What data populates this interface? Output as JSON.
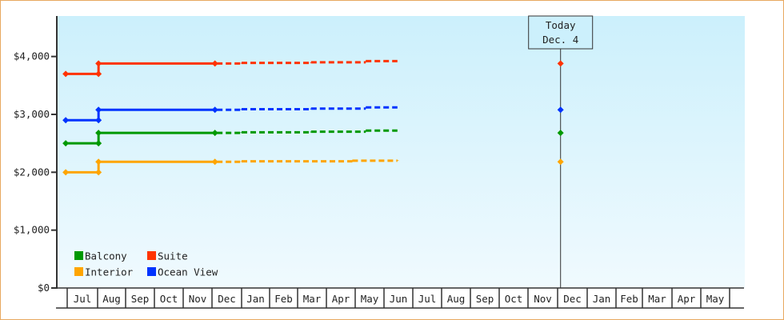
{
  "chart_data": {
    "type": "line",
    "title": "",
    "xlabel": "",
    "ylabel": "",
    "ylim": [
      0,
      4700
    ],
    "y_ticks": [
      "$0",
      "$1,000",
      "$2,000",
      "$3,000",
      "$4,000"
    ],
    "y_tick_values": [
      0,
      1000,
      2000,
      3000,
      4000
    ],
    "categories": [
      "",
      "Jul",
      "Aug",
      "Sep",
      "Oct",
      "Nov",
      "Dec",
      "Jan",
      "Feb",
      "Mar",
      "Apr",
      "May",
      "Jun",
      "Jul",
      "Aug",
      "Sep",
      "Oct",
      "Nov",
      "Dec",
      "Jan",
      "Feb",
      "Mar",
      "Apr",
      "May",
      ""
    ],
    "grid": false,
    "background": "light-blue gradient",
    "legend_position": "bottom-left",
    "today_marker": {
      "line1": "Today",
      "line2": "Dec. 4",
      "month": "Dec",
      "day": 4
    },
    "series": [
      {
        "name": "Suite",
        "color": "#ff3300",
        "points": [
          [
            "Jun",
            27,
            3700
          ],
          [
            "Aug",
            2,
            3700
          ],
          [
            "Aug",
            2,
            3880
          ],
          [
            "Dec",
            4,
            3880
          ]
        ],
        "forecast": [
          [
            "Dec",
            6,
            3880
          ],
          [
            "Jan",
            1,
            3890
          ],
          [
            "Mar",
            15,
            3900
          ],
          [
            "May",
            12,
            3920
          ],
          [
            "Jun",
            15,
            3920
          ]
        ]
      },
      {
        "name": "Ocean View",
        "color": "#0033ff",
        "points": [
          [
            "Jun",
            27,
            2900
          ],
          [
            "Aug",
            2,
            2900
          ],
          [
            "Aug",
            2,
            3080
          ],
          [
            "Dec",
            4,
            3080
          ]
        ],
        "forecast": [
          [
            "Dec",
            6,
            3080
          ],
          [
            "Jan",
            1,
            3090
          ],
          [
            "Mar",
            15,
            3100
          ],
          [
            "May",
            12,
            3120
          ],
          [
            "Jun",
            15,
            3120
          ]
        ]
      },
      {
        "name": "Balcony",
        "color": "#009900",
        "points": [
          [
            "Jun",
            27,
            2500
          ],
          [
            "Aug",
            2,
            2500
          ],
          [
            "Aug",
            2,
            2680
          ],
          [
            "Dec",
            4,
            2680
          ]
        ],
        "forecast": [
          [
            "Dec",
            6,
            2680
          ],
          [
            "Jan",
            1,
            2690
          ],
          [
            "Mar",
            15,
            2700
          ],
          [
            "May",
            12,
            2720
          ],
          [
            "Jun",
            15,
            2720
          ]
        ]
      },
      {
        "name": "Interior",
        "color": "#ffa500",
        "points": [
          [
            "Jun",
            27,
            2000
          ],
          [
            "Aug",
            2,
            2000
          ],
          [
            "Aug",
            2,
            2180
          ],
          [
            "Dec",
            4,
            2180
          ]
        ],
        "forecast": [
          [
            "Dec",
            6,
            2180
          ],
          [
            "Jan",
            1,
            2190
          ],
          [
            "Apr",
            28,
            2200
          ],
          [
            "Jun",
            15,
            2210
          ]
        ]
      }
    ],
    "legend": [
      {
        "name": "Balcony",
        "color": "#009900"
      },
      {
        "name": "Suite",
        "color": "#ff3300"
      },
      {
        "name": "Interior",
        "color": "#ffa500"
      },
      {
        "name": "Ocean View",
        "color": "#0033ff"
      }
    ]
  }
}
